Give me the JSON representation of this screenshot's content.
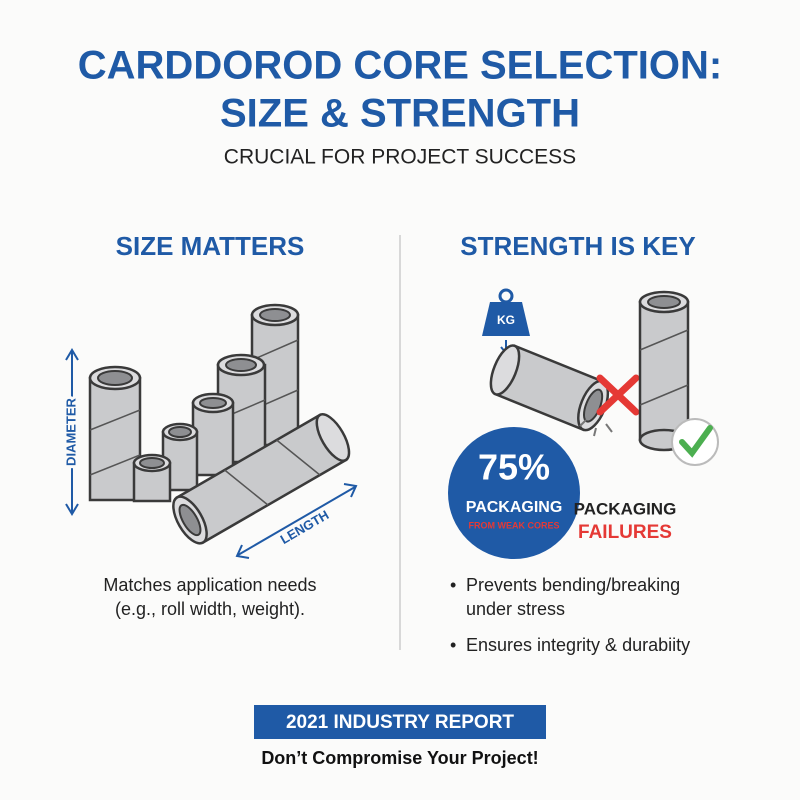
{
  "header": {
    "title_lines": [
      "CARDDOROD CORE SELECTION:",
      "SIZE & STRENGTH"
    ],
    "subtitle": "CRUCIAL FOR PROJECT SUCCESS"
  },
  "size_panel": {
    "heading": "SIZE MATTERS",
    "diameter_label": "DIAMETER",
    "length_label": "LENGTH",
    "description_lines": [
      "Matches application needs",
      "(e.g., roll width, weight)."
    ]
  },
  "strength_panel": {
    "heading": "STRENGTH IS KEY",
    "weight_label": "KG",
    "stat": {
      "value": "75%",
      "label": "PACKAGING",
      "sublabel": "FROM WEAK CORES"
    },
    "callout_lines": [
      "PACKAGING",
      "FAILURES"
    ],
    "bullets": [
      [
        "Prevents bending/breaking",
        "under stress"
      ],
      [
        "Ensures integrity & durabiity"
      ]
    ]
  },
  "footer": {
    "banner": "2021 INDUSTRY REPORT",
    "tagline": "Don’t Compromise Your Project!"
  }
}
